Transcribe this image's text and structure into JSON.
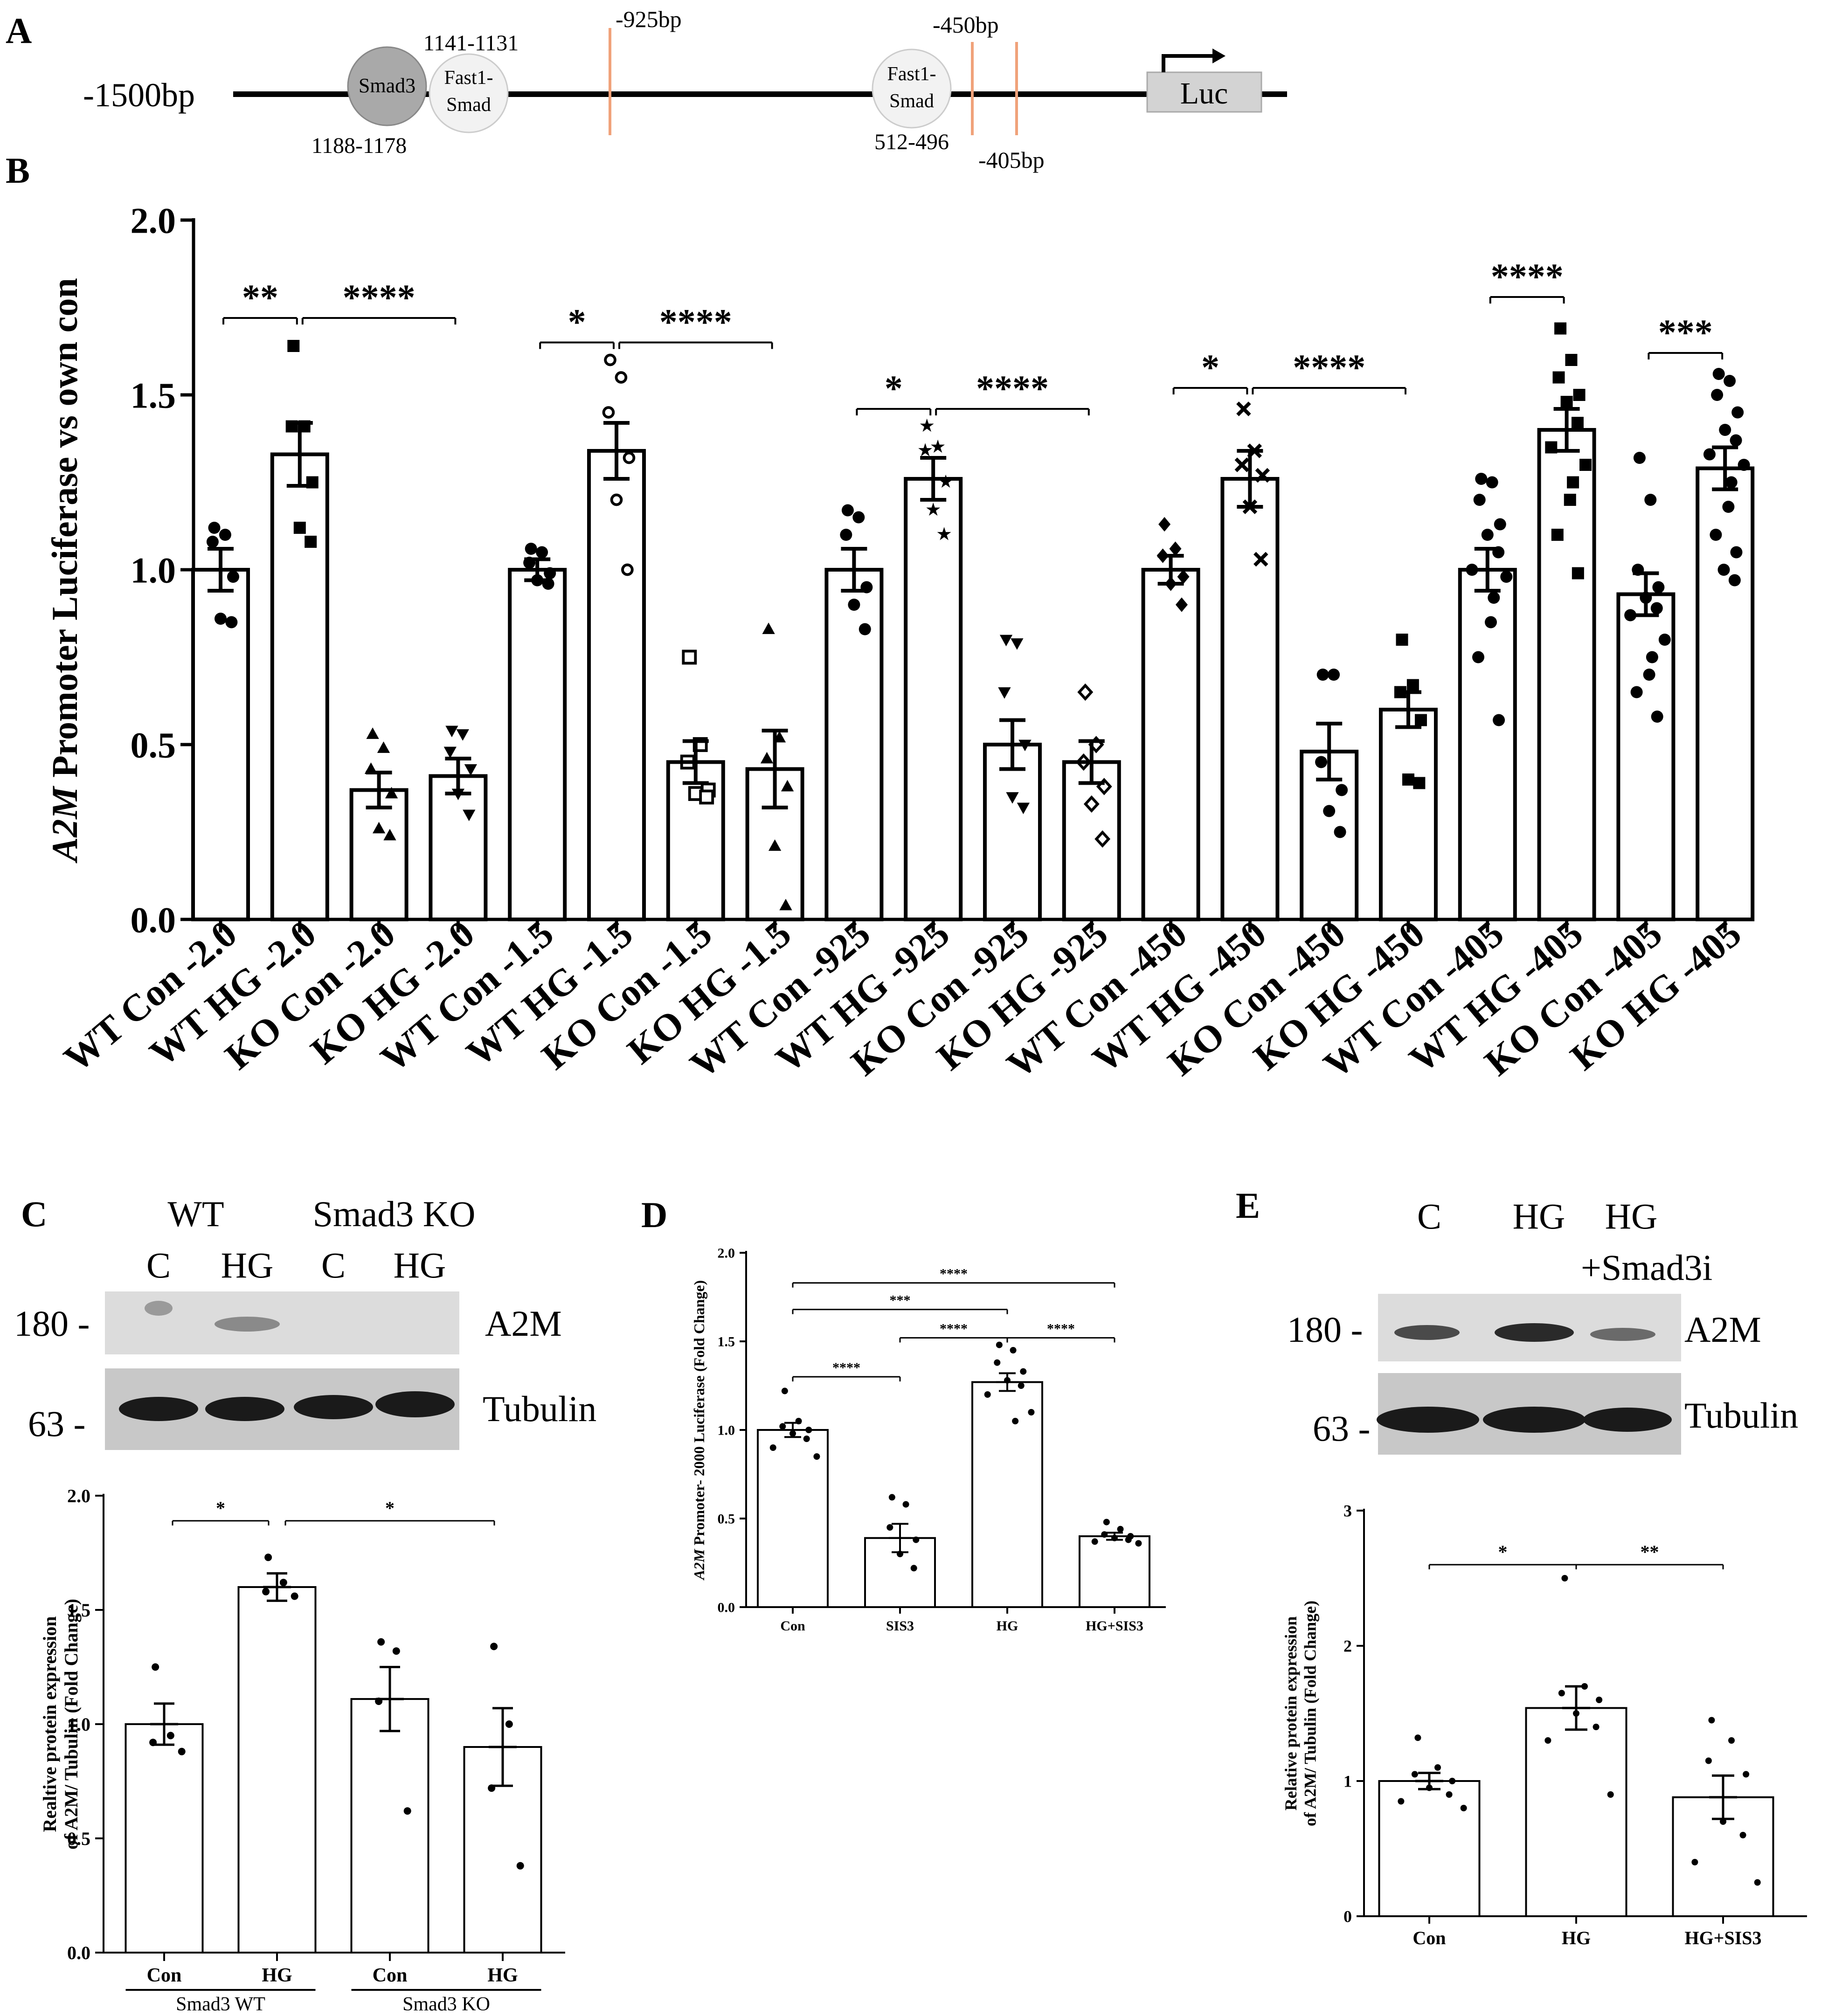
{
  "panel_labels": {
    "a": "A",
    "b": "B",
    "c": "C",
    "d": "D",
    "e": "E"
  },
  "colors": {
    "promoter_line": "#000000",
    "cut_line": "#f0a27a",
    "smad3_fill": "#a9a9a9",
    "fast1_fill": "#f2f2f2",
    "luc_fill": "#d3d3d3",
    "blot_bg": "#cfcfcf",
    "band": "#1a1a1a"
  },
  "promoter": {
    "start_label": "-1500bp",
    "sites": [
      {
        "name": "Smad3",
        "range": "1188-1178",
        "kind": "smad3"
      },
      {
        "name": "Fast1-\nSmad",
        "range": "1141-1131",
        "kind": "fast1"
      },
      {
        "name": "Fast1-\nSmad",
        "range": "512-496",
        "kind": "fast1"
      }
    ],
    "cuts": [
      "-925bp",
      "-450bp",
      "-405bp"
    ],
    "reporter": "Luc"
  },
  "chart_data": [
    {
      "id": "B",
      "type": "bar",
      "ylabel_italic": "A2M",
      "ylabel_rest": " Promoter Luciferase vs own con",
      "ylim": [
        0,
        2.0
      ],
      "yticks": [
        "0.0",
        "0.5",
        "1.0",
        "1.5",
        "2.0"
      ],
      "categories": [
        "WT Con -2.0",
        "WT HG -2.0",
        "KO Con -2.0",
        "KO HG -2.0",
        "WT Con -1.5",
        "WT HG -1.5",
        "KO Con -1.5",
        "KO HG -1.5",
        "WT Con -925",
        "WT HG -925",
        "KO Con -925",
        "KO HG -925",
        "WT Con -450",
        "WT HG -450",
        "KO Con -450",
        "KO HG -450",
        "WT Con -405",
        "WT HG -405",
        "KO Con -405",
        "KO HG -405"
      ],
      "values": [
        1.0,
        1.33,
        0.37,
        0.41,
        1.0,
        1.34,
        0.45,
        0.43,
        1.0,
        1.26,
        0.5,
        0.45,
        1.0,
        1.26,
        0.48,
        0.6,
        1.0,
        1.4,
        0.93,
        1.29
      ],
      "errors": [
        0.06,
        0.09,
        0.05,
        0.05,
        0.03,
        0.08,
        0.06,
        0.11,
        0.06,
        0.06,
        0.07,
        0.06,
        0.04,
        0.08,
        0.08,
        0.05,
        0.06,
        0.06,
        0.06,
        0.06
      ],
      "points": [
        [
          1.12,
          1.1,
          1.08,
          0.98,
          0.86,
          0.85
        ],
        [
          1.64,
          1.41,
          1.41,
          1.25,
          1.12,
          1.08
        ],
        [
          0.53,
          0.49,
          0.43,
          0.36,
          0.26,
          0.24
        ],
        [
          0.54,
          0.53,
          0.48,
          0.43,
          0.36,
          0.3
        ],
        [
          1.06,
          1.05,
          1.02,
          0.99,
          0.97,
          0.96
        ],
        [
          1.6,
          1.55,
          1.45,
          1.32,
          1.2,
          1.0
        ],
        [
          0.75,
          0.5,
          0.45,
          0.37,
          0.36,
          0.35
        ],
        [
          0.83,
          0.52,
          0.46,
          0.38,
          0.21,
          0.04
        ],
        [
          1.17,
          1.15,
          1.1,
          0.95,
          0.9,
          0.83
        ],
        [
          1.41,
          1.35,
          1.34,
          1.25,
          1.17,
          1.1
        ],
        [
          0.8,
          0.79,
          0.65,
          0.5,
          0.35,
          0.32
        ],
        [
          0.65,
          0.5,
          0.45,
          0.38,
          0.33,
          0.23
        ],
        [
          1.13,
          1.06,
          1.04,
          0.98,
          0.96,
          0.9
        ],
        [
          1.46,
          1.34,
          1.3,
          1.27,
          1.18,
          1.03
        ],
        [
          0.7,
          0.7,
          0.45,
          0.37,
          0.31,
          0.25
        ],
        [
          0.8,
          0.67,
          0.65,
          0.57,
          0.4,
          0.39
        ],
        [
          1.26,
          1.25,
          1.2,
          1.13,
          1.1,
          1.05,
          1.0,
          0.98,
          0.92,
          0.85,
          0.75,
          0.57
        ],
        [
          1.69,
          1.6,
          1.55,
          1.5,
          1.48,
          1.42,
          1.35,
          1.3,
          1.25,
          1.2,
          1.1,
          0.99
        ],
        [
          1.32,
          1.2,
          1.0,
          0.95,
          0.92,
          0.89,
          0.87,
          0.8,
          0.75,
          0.7,
          0.65,
          0.58
        ],
        [
          1.56,
          1.54,
          1.5,
          1.45,
          1.4,
          1.37,
          1.33,
          1.3,
          1.25,
          1.18,
          1.1,
          1.05,
          1.0,
          0.97
        ]
      ],
      "sig": [
        {
          "from": 0,
          "to": 1,
          "label": "**",
          "y": 1.72
        },
        {
          "from": 1,
          "to": 3,
          "label": "****",
          "y": 1.72
        },
        {
          "from": 4,
          "to": 5,
          "label": "*",
          "y": 1.65
        },
        {
          "from": 5,
          "to": 7,
          "label": "****",
          "y": 1.65
        },
        {
          "from": 8,
          "to": 9,
          "label": "*",
          "y": 1.46
        },
        {
          "from": 9,
          "to": 11,
          "label": "****",
          "y": 1.46
        },
        {
          "from": 12,
          "to": 13,
          "label": "*",
          "y": 1.52
        },
        {
          "from": 13,
          "to": 15,
          "label": "****",
          "y": 1.52
        },
        {
          "from": 16,
          "to": 17,
          "label": "****",
          "y": 1.78
        },
        {
          "from": 18,
          "to": 19,
          "label": "***",
          "y": 1.62
        }
      ]
    },
    {
      "id": "C",
      "type": "bar",
      "ylabel": [
        "Realtive protein expression",
        "of A2M/ Tubulin (Fold Change)"
      ],
      "ylim": [
        0,
        2.0
      ],
      "yticks": [
        "0.0",
        "0.5",
        "1.0",
        "1.5",
        "2.0"
      ],
      "categories": [
        "Con",
        "HG",
        "Con",
        "HG"
      ],
      "groups": [
        "Smad3 WT",
        "Smad3 KO"
      ],
      "values": [
        1.0,
        1.6,
        1.11,
        0.9
      ],
      "errors": [
        0.09,
        0.06,
        0.14,
        0.17
      ],
      "points": [
        [
          1.25,
          0.95,
          0.92,
          0.88
        ],
        [
          1.73,
          1.62,
          1.58,
          1.56
        ],
        [
          1.36,
          1.32,
          1.1,
          0.62
        ],
        [
          1.34,
          1.0,
          0.72,
          0.38
        ]
      ],
      "sig": [
        {
          "from": 0,
          "to": 1,
          "label": "*",
          "y": 1.89
        },
        {
          "from": 1,
          "to": 3,
          "label": "*",
          "y": 1.89
        }
      ]
    },
    {
      "id": "D",
      "type": "bar",
      "ylabel_italic": "A2M",
      "ylabel_rest": " Promoter- 2000 Luciferase (Fold Change)",
      "ylim": [
        0,
        2.0
      ],
      "yticks": [
        "0.0",
        "0.5",
        "1.0",
        "1.5",
        "2.0"
      ],
      "categories": [
        "Con",
        "SIS3",
        "HG",
        "HG+SIS3"
      ],
      "values": [
        1.0,
        0.39,
        1.27,
        0.4
      ],
      "errors": [
        0.04,
        0.08,
        0.05,
        0.02
      ],
      "points": [
        [
          1.22,
          1.05,
          1.02,
          1.0,
          0.98,
          0.95,
          0.9,
          0.85
        ],
        [
          0.62,
          0.58,
          0.45,
          0.38,
          0.3,
          0.22
        ],
        [
          1.48,
          1.45,
          1.38,
          1.33,
          1.28,
          1.25,
          1.2,
          1.1,
          1.05
        ],
        [
          0.48,
          0.44,
          0.41,
          0.4,
          0.39,
          0.38,
          0.37,
          0.36
        ]
      ],
      "sig": [
        {
          "from": 0,
          "to": 1,
          "label": "****",
          "y": 1.3
        },
        {
          "from": 1,
          "to": 2,
          "label": "****",
          "y": 1.52
        },
        {
          "from": 2,
          "to": 3,
          "label": "****",
          "y": 1.52
        },
        {
          "from": 0,
          "to": 2,
          "label": "***",
          "y": 1.68
        },
        {
          "from": 0,
          "to": 3,
          "label": "****",
          "y": 1.83
        }
      ]
    },
    {
      "id": "E",
      "type": "bar",
      "ylabel": [
        "Relative protein expression",
        "of A2M/ Tubulin (Fold Change)"
      ],
      "ylim": [
        0,
        3
      ],
      "yticks": [
        "0",
        "1",
        "2",
        "3"
      ],
      "categories": [
        "Con",
        "HG",
        "HG+SIS3"
      ],
      "values": [
        1.0,
        1.54,
        0.88
      ],
      "errors": [
        0.06,
        0.16,
        0.16
      ],
      "points": [
        [
          1.32,
          1.1,
          1.05,
          1.0,
          0.95,
          0.9,
          0.85,
          0.8
        ],
        [
          2.5,
          1.7,
          1.65,
          1.6,
          1.5,
          1.4,
          1.3,
          0.9
        ],
        [
          1.45,
          1.3,
          1.15,
          1.05,
          0.7,
          0.6,
          0.4,
          0.25
        ]
      ],
      "sig": [
        {
          "from": 0,
          "to": 1,
          "label": "*",
          "y": 2.6
        },
        {
          "from": 1,
          "to": 2,
          "label": "**",
          "y": 2.6
        }
      ]
    }
  ],
  "blots": {
    "c": {
      "groups": [
        "WT",
        "Smad3 KO"
      ],
      "lanes": [
        "C",
        "HG",
        "C",
        "HG"
      ],
      "a2m_label": "A2M",
      "tubulin_label": "Tubulin",
      "mw_top": "180 -",
      "mw_bottom": "63 -"
    },
    "e": {
      "lanes": [
        "C",
        "HG",
        "HG"
      ],
      "lane3_sub": "+Smad3i",
      "a2m_label": "A2M",
      "tubulin_label": "Tubulin",
      "mw_top": "180 -",
      "mw_bottom": "63 -"
    }
  }
}
